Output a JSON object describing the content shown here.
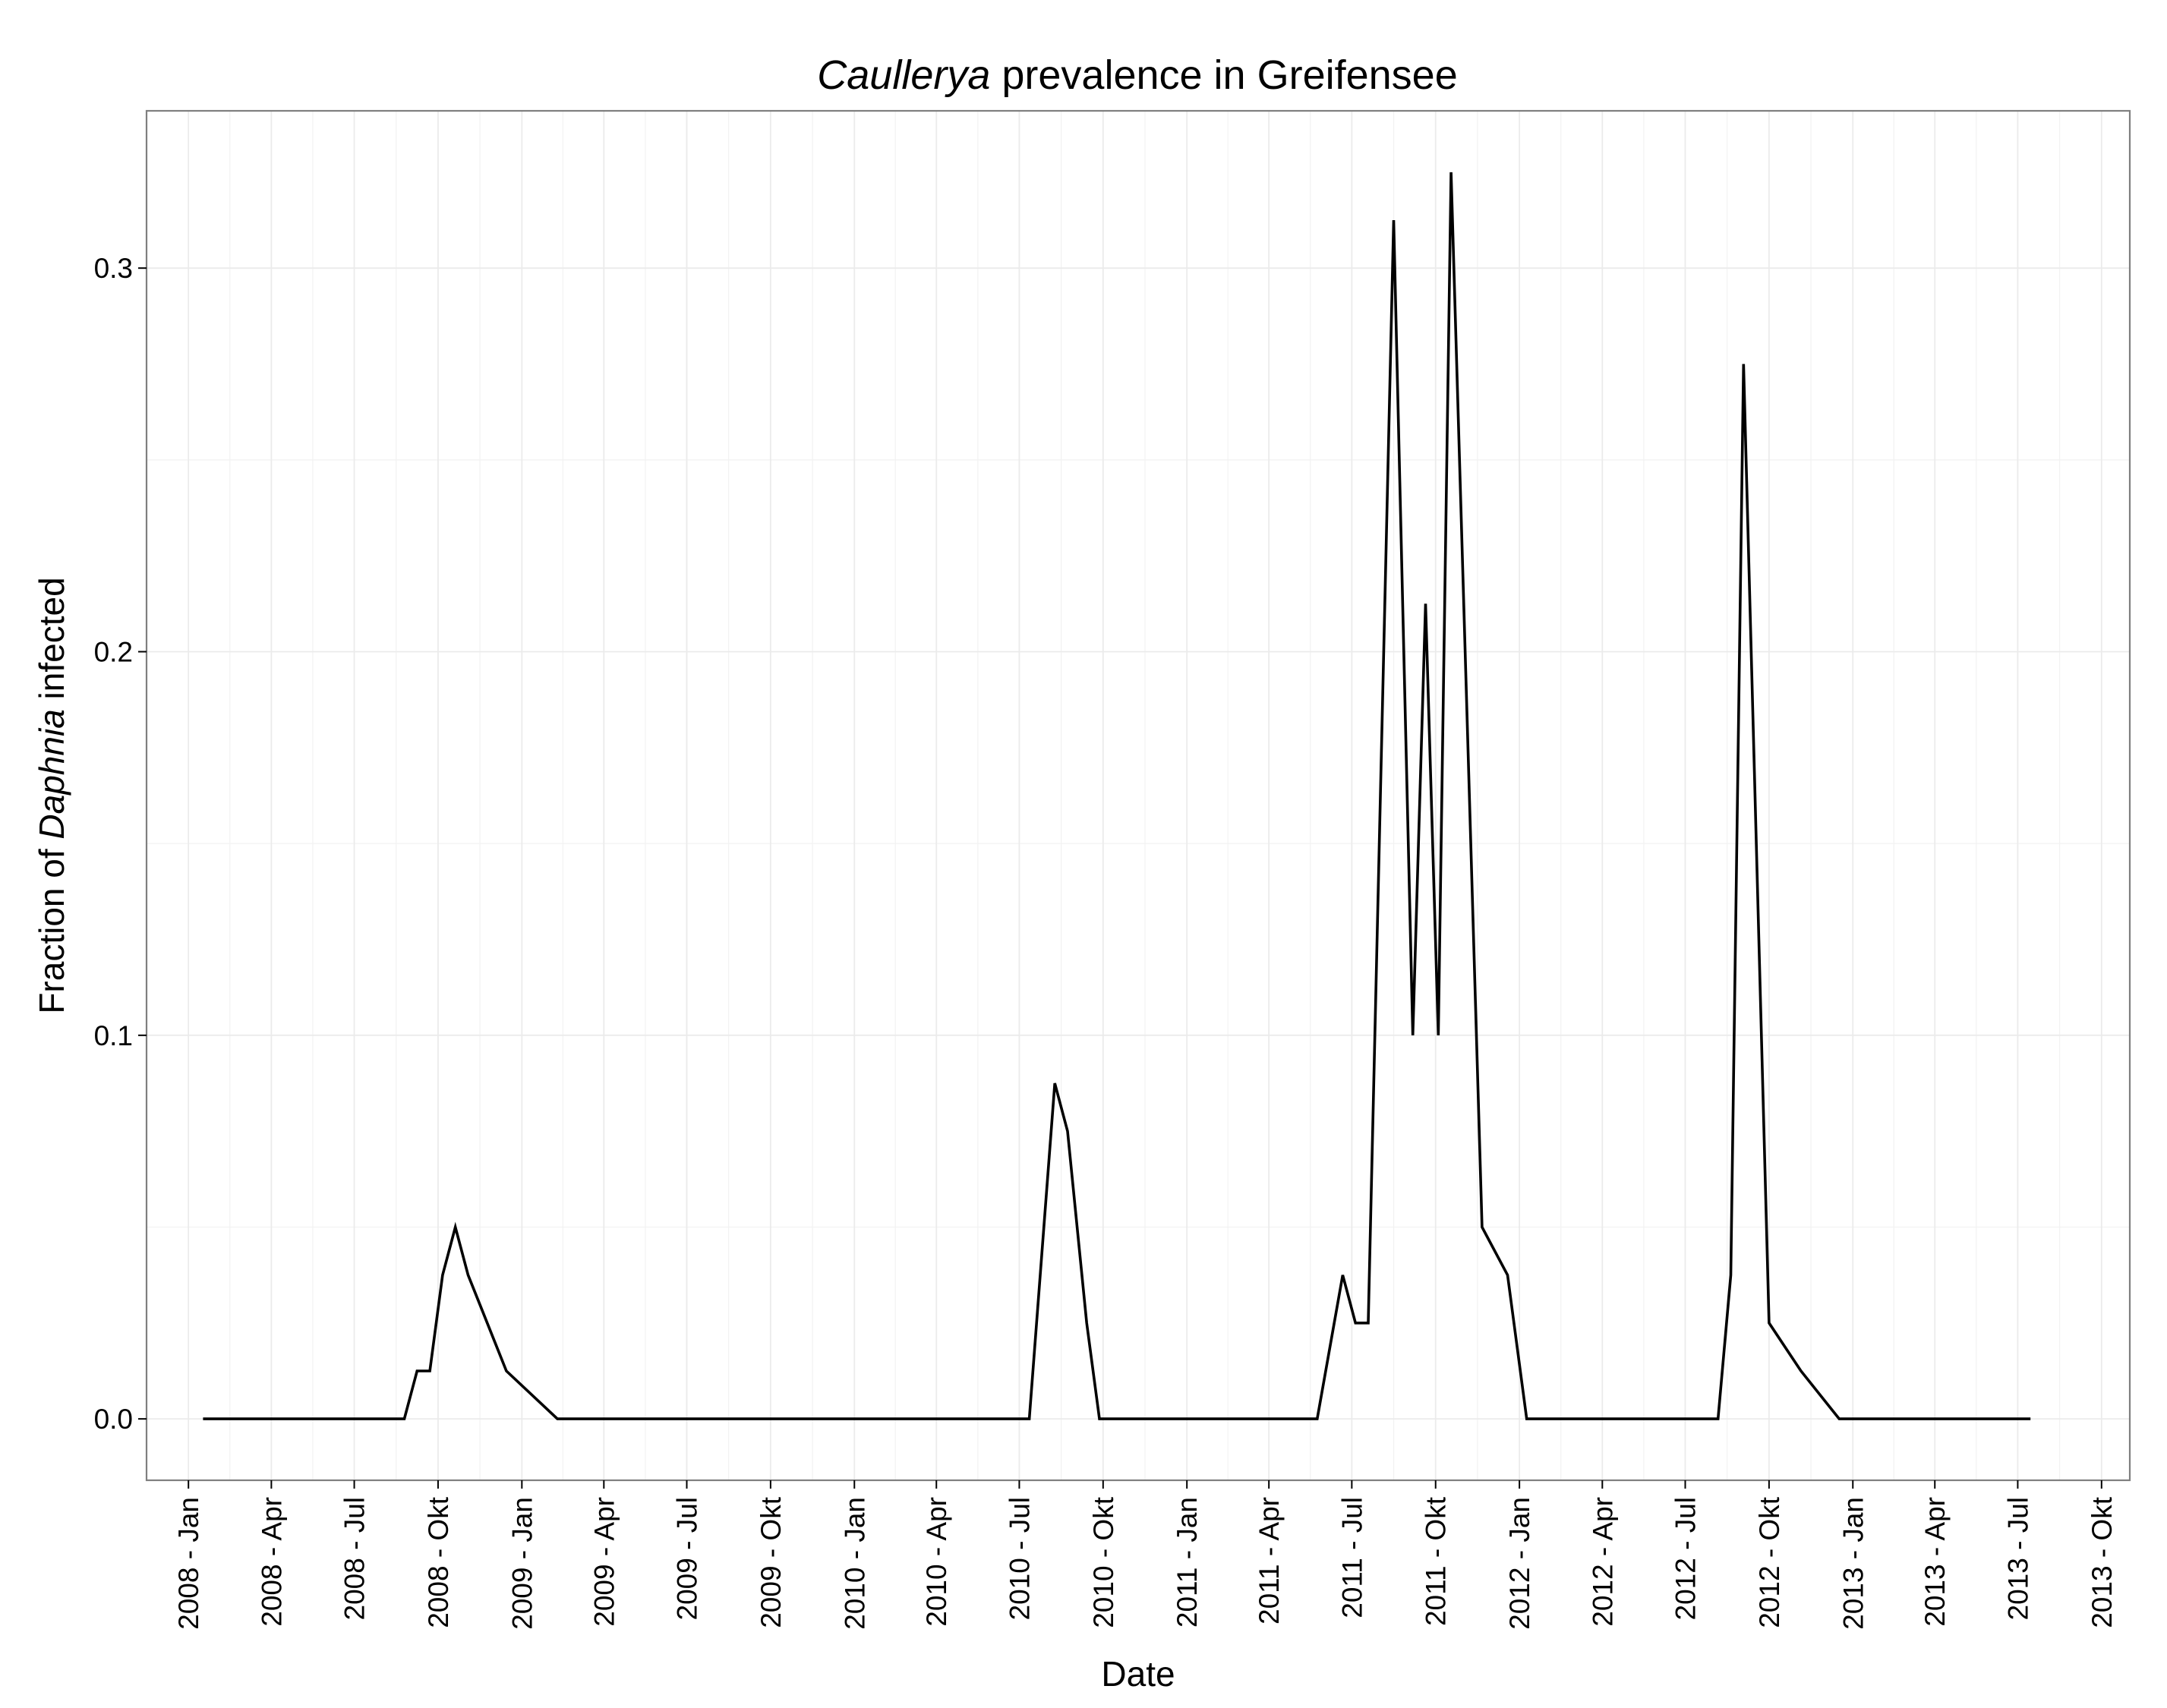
{
  "chart_data": {
    "type": "line",
    "title": {
      "italic": "Caullerya",
      "rest": " prevalence in Greifensee"
    },
    "xlabel": "Date",
    "ylabel": {
      "prefix": "Fraction of ",
      "italic": "Daphnia",
      "suffix": " infected"
    },
    "x_ticks": [
      {
        "date": "2008-01-01",
        "label": "2008 - Jan"
      },
      {
        "date": "2008-04-01",
        "label": "2008 - Apr"
      },
      {
        "date": "2008-07-01",
        "label": "2008 - Jul"
      },
      {
        "date": "2008-10-01",
        "label": "2008 - Okt"
      },
      {
        "date": "2009-01-01",
        "label": "2009 - Jan"
      },
      {
        "date": "2009-04-01",
        "label": "2009 - Apr"
      },
      {
        "date": "2009-07-01",
        "label": "2009 - Jul"
      },
      {
        "date": "2009-10-01",
        "label": "2009 - Okt"
      },
      {
        "date": "2010-01-01",
        "label": "2010 - Jan"
      },
      {
        "date": "2010-04-01",
        "label": "2010 - Apr"
      },
      {
        "date": "2010-07-01",
        "label": "2010 - Jul"
      },
      {
        "date": "2010-10-01",
        "label": "2010 - Okt"
      },
      {
        "date": "2011-01-01",
        "label": "2011 - Jan"
      },
      {
        "date": "2011-04-01",
        "label": "2011 - Apr"
      },
      {
        "date": "2011-07-01",
        "label": "2011 - Jul"
      },
      {
        "date": "2011-10-01",
        "label": "2011 - Okt"
      },
      {
        "date": "2012-01-01",
        "label": "2012 - Jan"
      },
      {
        "date": "2012-04-01",
        "label": "2012 - Apr"
      },
      {
        "date": "2012-07-01",
        "label": "2012 - Jul"
      },
      {
        "date": "2012-10-01",
        "label": "2012 - Okt"
      },
      {
        "date": "2013-01-01",
        "label": "2013 - Jan"
      },
      {
        "date": "2013-04-01",
        "label": "2013 - Apr"
      },
      {
        "date": "2013-07-01",
        "label": "2013 - Jul"
      },
      {
        "date": "2013-10-01",
        "label": "2013 - Okt"
      }
    ],
    "y_ticks": [
      0.0,
      0.1,
      0.2,
      0.3
    ],
    "y_tick_labels": [
      "0.0",
      "0.1",
      "0.2",
      "0.3"
    ],
    "xlim": [
      "2007-11-16",
      "2013-11-01"
    ],
    "ylim": [
      -0.016,
      0.341
    ],
    "grid": true,
    "line_color": "#000000",
    "grid_color": "#ebebeb",
    "series": [
      {
        "points": [
          [
            "2008-01-17",
            0.0
          ],
          [
            "2008-08-25",
            0.0
          ],
          [
            "2008-09-08",
            0.0125
          ],
          [
            "2008-09-22",
            0.0125
          ],
          [
            "2008-10-06",
            0.0375
          ],
          [
            "2008-10-20",
            0.05
          ],
          [
            "2008-11-03",
            0.0375
          ],
          [
            "2008-11-24",
            0.025
          ],
          [
            "2008-12-15",
            0.0125
          ],
          [
            "2009-02-09",
            0.0
          ],
          [
            "2010-07-12",
            0.0
          ],
          [
            "2010-08-09",
            0.0875
          ],
          [
            "2010-08-23",
            0.075
          ],
          [
            "2010-09-13",
            0.025
          ],
          [
            "2010-09-27",
            0.0
          ],
          [
            "2011-05-24",
            0.0
          ],
          [
            "2011-06-21",
            0.0375
          ],
          [
            "2011-07-05",
            0.025
          ],
          [
            "2011-07-19",
            0.025
          ],
          [
            "2011-08-16",
            0.3125
          ],
          [
            "2011-09-06",
            0.1
          ],
          [
            "2011-09-20",
            0.2125
          ],
          [
            "2011-10-04",
            0.1
          ],
          [
            "2011-10-18",
            0.325
          ],
          [
            "2011-11-21",
            0.05
          ],
          [
            "2011-12-19",
            0.0375
          ],
          [
            "2012-01-09",
            0.0
          ],
          [
            "2012-08-06",
            0.0
          ],
          [
            "2012-08-20",
            0.0375
          ],
          [
            "2012-09-03",
            0.275
          ],
          [
            "2012-10-01",
            0.025
          ],
          [
            "2012-11-05",
            0.0125
          ],
          [
            "2012-12-17",
            0.0
          ],
          [
            "2013-07-15",
            0.0
          ]
        ]
      }
    ]
  }
}
